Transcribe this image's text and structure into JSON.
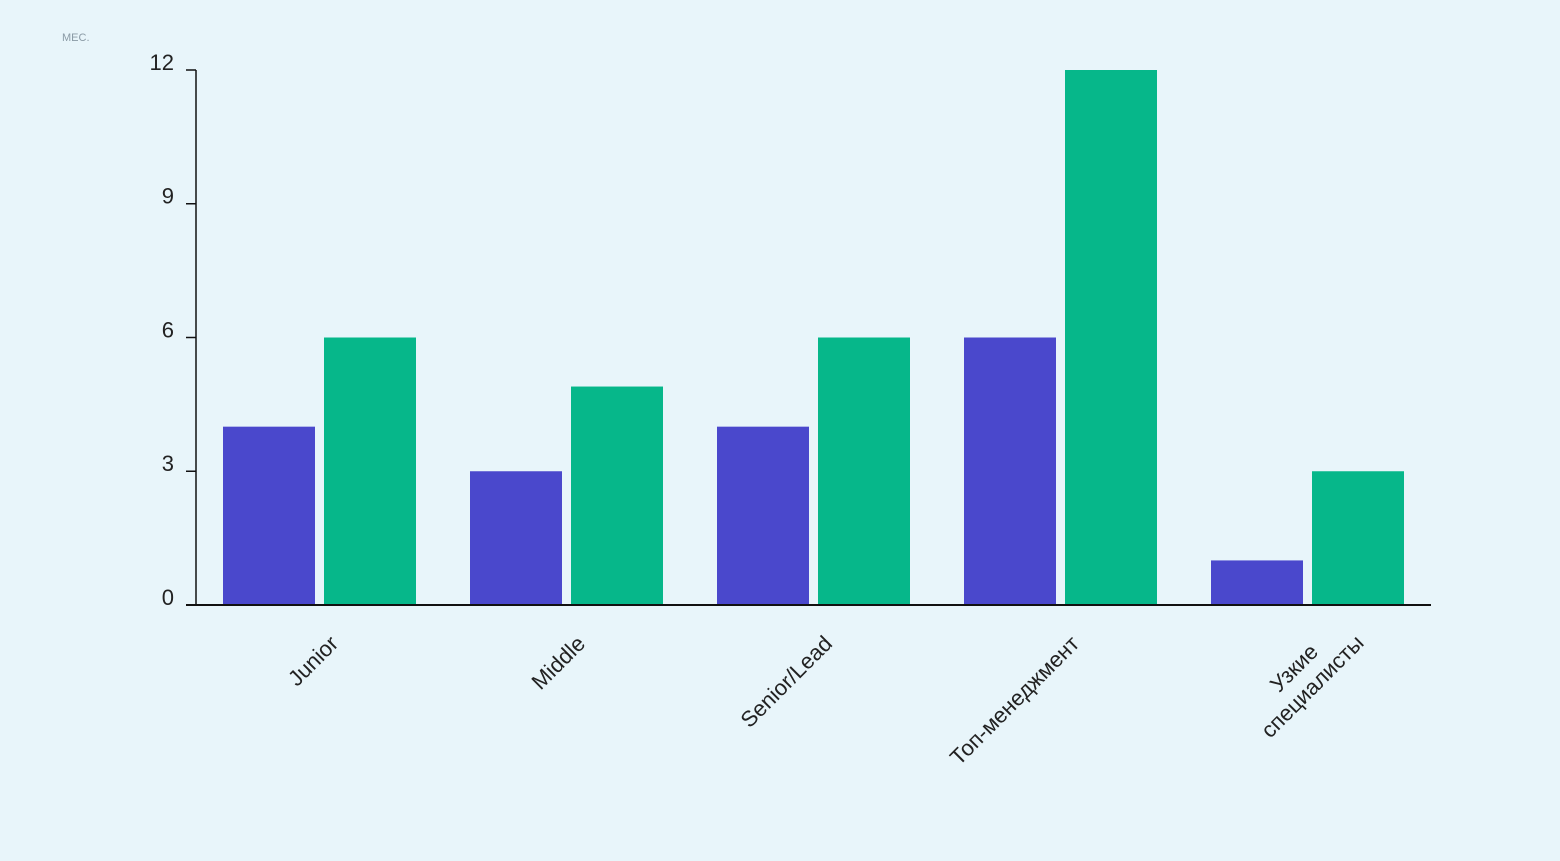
{
  "chart_data": {
    "type": "bar",
    "y_label": "МЕС.",
    "categories": [
      "Junior",
      "Middle",
      "Senior/Lead",
      "Топ-менеджмент",
      "Узкие специалисты"
    ],
    "series": [
      {
        "color": "#4a48cc",
        "values": [
          4,
          3,
          4,
          6,
          1
        ]
      },
      {
        "color": "#06b78a",
        "values": [
          6,
          4.9,
          6,
          12,
          3
        ]
      }
    ],
    "ylim": [
      0,
      12
    ],
    "yticks": [
      0,
      3,
      6,
      9,
      12
    ]
  }
}
